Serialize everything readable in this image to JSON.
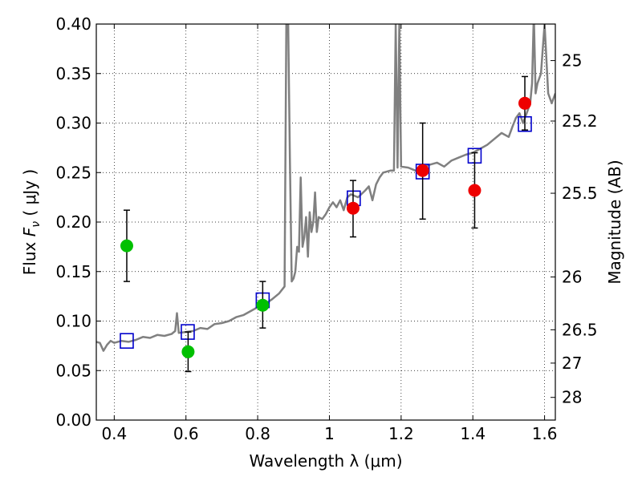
{
  "chart_data": {
    "type": "scatter",
    "xlabel": "Wavelength  λ (μm)",
    "ylabel_prefix": "Flux  ",
    "ylabel_symbol": "F",
    "ylabel_subscript": "ν",
    "ylabel_suffix": "  ( μJy )",
    "y2label": "Magnitude (AB)",
    "xlim": [
      0.35,
      1.63
    ],
    "ylim": [
      0.0,
      0.4
    ],
    "grid": true,
    "x_ticks": [
      {
        "value": 0.4,
        "label": "0.4"
      },
      {
        "value": 0.6,
        "label": "0.6"
      },
      {
        "value": 0.8,
        "label": "0.8"
      },
      {
        "value": 1.0,
        "label": "1"
      },
      {
        "value": 1.2,
        "label": "1.2"
      },
      {
        "value": 1.4,
        "label": "1.4"
      },
      {
        "value": 1.6,
        "label": "1.6"
      }
    ],
    "y_ticks": [
      {
        "value": 0.0,
        "label": "0.00"
      },
      {
        "value": 0.05,
        "label": "0.05"
      },
      {
        "value": 0.1,
        "label": "0.10"
      },
      {
        "value": 0.15,
        "label": "0.15"
      },
      {
        "value": 0.2,
        "label": "0.20"
      },
      {
        "value": 0.25,
        "label": "0.25"
      },
      {
        "value": 0.3,
        "label": "0.30"
      },
      {
        "value": 0.35,
        "label": "0.35"
      },
      {
        "value": 0.4,
        "label": "0.40"
      }
    ],
    "y2_ticks": [
      {
        "mag": 25,
        "label": "25"
      },
      {
        "mag": 25.2,
        "label": "25.2"
      },
      {
        "mag": 25.5,
        "label": "25.5"
      },
      {
        "mag": 26,
        "label": "26"
      },
      {
        "mag": 26.5,
        "label": "26.5"
      },
      {
        "mag": 27,
        "label": "27"
      },
      {
        "mag": 28,
        "label": "28"
      }
    ],
    "series": [
      {
        "kind": "line",
        "color": "#808080",
        "points": [
          [
            0.35,
            0.079
          ],
          [
            0.36,
            0.078
          ],
          [
            0.37,
            0.07
          ],
          [
            0.38,
            0.076
          ],
          [
            0.39,
            0.08
          ],
          [
            0.4,
            0.078
          ],
          [
            0.42,
            0.08
          ],
          [
            0.44,
            0.079
          ],
          [
            0.46,
            0.081
          ],
          [
            0.48,
            0.084
          ],
          [
            0.5,
            0.083
          ],
          [
            0.52,
            0.086
          ],
          [
            0.54,
            0.085
          ],
          [
            0.56,
            0.087
          ],
          [
            0.57,
            0.09
          ],
          [
            0.575,
            0.108
          ],
          [
            0.58,
            0.088
          ],
          [
            0.6,
            0.089
          ],
          [
            0.62,
            0.09
          ],
          [
            0.64,
            0.093
          ],
          [
            0.66,
            0.092
          ],
          [
            0.68,
            0.097
          ],
          [
            0.7,
            0.098
          ],
          [
            0.72,
            0.1
          ],
          [
            0.74,
            0.104
          ],
          [
            0.76,
            0.106
          ],
          [
            0.78,
            0.11
          ],
          [
            0.8,
            0.114
          ],
          [
            0.82,
            0.117
          ],
          [
            0.84,
            0.122
          ],
          [
            0.86,
            0.128
          ],
          [
            0.875,
            0.135
          ],
          [
            0.88,
            0.4
          ],
          [
            0.885,
            0.4
          ],
          [
            0.89,
            0.26
          ],
          [
            0.895,
            0.14
          ],
          [
            0.9,
            0.143
          ],
          [
            0.905,
            0.15
          ],
          [
            0.91,
            0.175
          ],
          [
            0.915,
            0.17
          ],
          [
            0.92,
            0.245
          ],
          [
            0.925,
            0.175
          ],
          [
            0.93,
            0.185
          ],
          [
            0.935,
            0.205
          ],
          [
            0.94,
            0.165
          ],
          [
            0.945,
            0.21
          ],
          [
            0.95,
            0.19
          ],
          [
            0.955,
            0.2
          ],
          [
            0.96,
            0.23
          ],
          [
            0.965,
            0.19
          ],
          [
            0.97,
            0.205
          ],
          [
            0.98,
            0.203
          ],
          [
            0.99,
            0.208
          ],
          [
            1.0,
            0.215
          ],
          [
            1.01,
            0.22
          ],
          [
            1.02,
            0.215
          ],
          [
            1.03,
            0.222
          ],
          [
            1.04,
            0.212
          ],
          [
            1.05,
            0.225
          ],
          [
            1.06,
            0.228
          ],
          [
            1.08,
            0.225
          ],
          [
            1.1,
            0.232
          ],
          [
            1.11,
            0.236
          ],
          [
            1.12,
            0.222
          ],
          [
            1.13,
            0.238
          ],
          [
            1.14,
            0.245
          ],
          [
            1.15,
            0.25
          ],
          [
            1.17,
            0.252
          ],
          [
            1.18,
            0.252
          ],
          [
            1.185,
            0.4
          ],
          [
            1.19,
            0.255
          ],
          [
            1.195,
            0.4
          ],
          [
            1.2,
            0.256
          ],
          [
            1.22,
            0.255
          ],
          [
            1.24,
            0.252
          ],
          [
            1.26,
            0.255
          ],
          [
            1.28,
            0.258
          ],
          [
            1.3,
            0.26
          ],
          [
            1.32,
            0.256
          ],
          [
            1.34,
            0.262
          ],
          [
            1.36,
            0.265
          ],
          [
            1.38,
            0.268
          ],
          [
            1.4,
            0.27
          ],
          [
            1.42,
            0.274
          ],
          [
            1.44,
            0.278
          ],
          [
            1.46,
            0.284
          ],
          [
            1.48,
            0.29
          ],
          [
            1.5,
            0.286
          ],
          [
            1.51,
            0.296
          ],
          [
            1.52,
            0.305
          ],
          [
            1.53,
            0.31
          ],
          [
            1.54,
            0.3
          ],
          [
            1.55,
            0.31
          ],
          [
            1.56,
            0.32
          ],
          [
            1.565,
            0.34
          ],
          [
            1.57,
            0.41
          ],
          [
            1.575,
            0.33
          ],
          [
            1.58,
            0.34
          ],
          [
            1.59,
            0.35
          ],
          [
            1.6,
            0.4
          ],
          [
            1.61,
            0.33
          ],
          [
            1.62,
            0.32
          ],
          [
            1.63,
            0.33
          ]
        ]
      },
      {
        "kind": "open-square",
        "color": "#0000cc",
        "points": [
          [
            0.435,
            0.08
          ],
          [
            0.605,
            0.089
          ],
          [
            0.814,
            0.121
          ],
          [
            1.068,
            0.224
          ],
          [
            1.26,
            0.251
          ],
          [
            1.405,
            0.267
          ],
          [
            1.545,
            0.299
          ]
        ]
      },
      {
        "kind": "errorbar-dot",
        "color": "#00c000",
        "points": [
          {
            "x": 0.435,
            "y": 0.176,
            "lo": 0.14,
            "hi": 0.212
          },
          {
            "x": 0.606,
            "y": 0.069,
            "lo": 0.049,
            "hi": 0.089
          },
          {
            "x": 0.814,
            "y": 0.116,
            "lo": 0.093,
            "hi": 0.14
          }
        ]
      },
      {
        "kind": "errorbar-dot",
        "color": "#ee0000",
        "points": [
          {
            "x": 1.066,
            "y": 0.214,
            "lo": 0.185,
            "hi": 0.242
          },
          {
            "x": 1.26,
            "y": 0.252,
            "lo": 0.203,
            "hi": 0.3
          },
          {
            "x": 1.405,
            "y": 0.232,
            "lo": 0.194,
            "hi": 0.27
          },
          {
            "x": 1.545,
            "y": 0.32,
            "lo": 0.293,
            "hi": 0.347
          }
        ]
      }
    ]
  }
}
